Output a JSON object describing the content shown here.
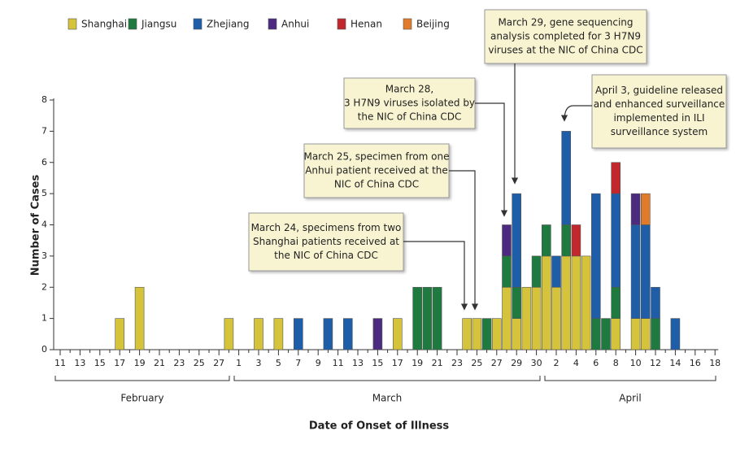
{
  "chart_data": {
    "type": "stacked-bar",
    "y_label": "Number of Cases",
    "x_label": "Date of Onset of Illness",
    "categories": [
      "11",
      null,
      "13",
      null,
      "15",
      null,
      "17",
      null,
      "19",
      null,
      "21",
      null,
      "23",
      null,
      "25",
      null,
      "27",
      null,
      "1",
      null,
      "3",
      null,
      "5",
      null,
      "7",
      null,
      "9",
      null,
      "11",
      null,
      "13",
      null,
      "15",
      null,
      "17",
      null,
      "19",
      null,
      "21",
      null,
      "23",
      null,
      "25",
      null,
      "27",
      null,
      "29",
      null,
      "30",
      null,
      "2",
      null,
      "4",
      null,
      "6",
      null,
      "8",
      null,
      "10",
      null,
      "12",
      null,
      "14",
      null,
      "16",
      null,
      "18"
    ],
    "months": [
      "February",
      "March",
      "April"
    ],
    "series": [
      {
        "name": "Shanghai",
        "color": "#d5c33b",
        "values": [
          0,
          0,
          0,
          0,
          0,
          0,
          1,
          0,
          2,
          0,
          0,
          0,
          0,
          0,
          0,
          0,
          0,
          1,
          0,
          0,
          1,
          0,
          1,
          0,
          0,
          0,
          0,
          0,
          0,
          0,
          0,
          0,
          0,
          0,
          1,
          0,
          0,
          0,
          0,
          0,
          0,
          1,
          1,
          0,
          1,
          2,
          1,
          2,
          2,
          3,
          2,
          3,
          3,
          3,
          0,
          0,
          1,
          0,
          1,
          1,
          0,
          0,
          0,
          0,
          0,
          0,
          0
        ]
      },
      {
        "name": "Jiangsu",
        "color": "#1f7a40",
        "values": [
          0,
          0,
          0,
          0,
          0,
          0,
          0,
          0,
          0,
          0,
          0,
          0,
          0,
          0,
          0,
          0,
          0,
          0,
          0,
          0,
          0,
          0,
          0,
          0,
          0,
          0,
          0,
          0,
          0,
          0,
          0,
          0,
          0,
          0,
          0,
          0,
          2,
          2,
          2,
          0,
          0,
          0,
          0,
          1,
          0,
          1,
          1,
          0,
          1,
          1,
          0,
          1,
          0,
          0,
          1,
          1,
          1,
          0,
          0,
          0,
          1,
          0,
          0,
          0,
          0,
          0,
          0
        ]
      },
      {
        "name": "Zhejiang",
        "color": "#1e5ea9",
        "values": [
          0,
          0,
          0,
          0,
          0,
          0,
          0,
          0,
          0,
          0,
          0,
          0,
          0,
          0,
          0,
          0,
          0,
          0,
          0,
          0,
          0,
          0,
          0,
          0,
          1,
          0,
          0,
          1,
          0,
          1,
          0,
          0,
          0,
          0,
          0,
          0,
          0,
          0,
          0,
          0,
          0,
          0,
          0,
          0,
          0,
          0,
          3,
          0,
          0,
          0,
          1,
          3,
          0,
          0,
          4,
          0,
          3,
          0,
          3,
          3,
          1,
          0,
          1,
          0,
          0,
          0,
          0
        ]
      },
      {
        "name": "Anhui",
        "color": "#4b2a80",
        "values": [
          0,
          0,
          0,
          0,
          0,
          0,
          0,
          0,
          0,
          0,
          0,
          0,
          0,
          0,
          0,
          0,
          0,
          0,
          0,
          0,
          0,
          0,
          0,
          0,
          0,
          0,
          0,
          0,
          0,
          0,
          0,
          0,
          1,
          0,
          0,
          0,
          0,
          0,
          0,
          0,
          0,
          0,
          0,
          0,
          0,
          1,
          0,
          0,
          0,
          0,
          0,
          0,
          0,
          0,
          0,
          0,
          0,
          0,
          1,
          0,
          0,
          0,
          0,
          0,
          0,
          0,
          0
        ]
      },
      {
        "name": "Henan",
        "color": "#c1272d",
        "values": [
          0,
          0,
          0,
          0,
          0,
          0,
          0,
          0,
          0,
          0,
          0,
          0,
          0,
          0,
          0,
          0,
          0,
          0,
          0,
          0,
          0,
          0,
          0,
          0,
          0,
          0,
          0,
          0,
          0,
          0,
          0,
          0,
          0,
          0,
          0,
          0,
          0,
          0,
          0,
          0,
          0,
          0,
          0,
          0,
          0,
          0,
          0,
          0,
          0,
          0,
          0,
          0,
          1,
          0,
          0,
          0,
          1,
          0,
          0,
          0,
          0,
          0,
          0,
          0,
          0,
          0,
          0
        ]
      },
      {
        "name": "Beijing",
        "color": "#e07b2b",
        "values": [
          0,
          0,
          0,
          0,
          0,
          0,
          0,
          0,
          0,
          0,
          0,
          0,
          0,
          0,
          0,
          0,
          0,
          0,
          0,
          0,
          0,
          0,
          0,
          0,
          0,
          0,
          0,
          0,
          0,
          0,
          0,
          0,
          0,
          0,
          0,
          0,
          0,
          0,
          0,
          0,
          0,
          0,
          0,
          0,
          0,
          0,
          0,
          0,
          0,
          0,
          0,
          0,
          0,
          0,
          0,
          0,
          0,
          0,
          0,
          1,
          0,
          0,
          0,
          0,
          0,
          0,
          0
        ]
      }
    ],
    "ylim": [
      0,
      8
    ],
    "yticks": [
      0,
      1,
      2,
      3,
      4,
      5,
      6,
      7,
      8
    ],
    "annotations": [
      {
        "lines": [
          "March 29, gene sequencing",
          "analysis completed for 3 H7N9",
          "viruses at the NIC of China CDC"
        ]
      },
      {
        "lines": [
          "March 28,",
          "3 H7N9 viruses isolated by",
          "the NIC of China CDC"
        ]
      },
      {
        "lines": [
          "March 25, specimen from one",
          "Anhui patient received at the",
          "NIC of China CDC"
        ]
      },
      {
        "lines": [
          "March 24, specimens from two",
          "Shanghai patients received at",
          "the NIC of China CDC"
        ]
      },
      {
        "lines": [
          "April 3, guideline released",
          "and enhanced surveillance",
          "implemented in ILI",
          "surveillance system"
        ]
      }
    ]
  }
}
